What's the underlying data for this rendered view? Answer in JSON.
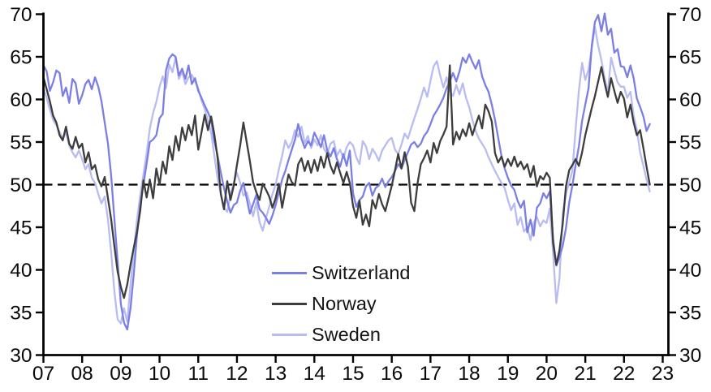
{
  "chart_data": {
    "type": "line",
    "title": "",
    "description": "Manufacturing PMI lines for Switzerland, Norway and Sweden, monthly 2007 to late 2022",
    "xlabel": "",
    "ylabel": "",
    "ylim": [
      30,
      70
    ],
    "y_ticks": [
      30,
      35,
      40,
      45,
      50,
      55,
      60,
      65,
      70
    ],
    "y_axis_sides": "both",
    "x_tick_labels": [
      "07",
      "08",
      "09",
      "10",
      "11",
      "12",
      "13",
      "14",
      "15",
      "16",
      "17",
      "18",
      "19",
      "20",
      "21",
      "22",
      "23"
    ],
    "x_tick_years": [
      2007,
      2008,
      2009,
      2010,
      2011,
      2012,
      2013,
      2014,
      2015,
      2016,
      2017,
      2018,
      2019,
      2020,
      2021,
      2022,
      2023
    ],
    "grid": false,
    "reference_line": {
      "value": 50,
      "style": "dashed",
      "color": "#000000"
    },
    "legend": {
      "position": "center-bottom",
      "order": [
        "Switzerland",
        "Norway",
        "Sweden"
      ]
    },
    "x_start_year": 2007.0,
    "x_step_years": 0.0833333,
    "series": [
      {
        "name": "Switzerland",
        "color": "#7b7fe4",
        "values": [
          64.0,
          63.3,
          61.0,
          62.0,
          63.4,
          63.1,
          60.4,
          61.4,
          59.6,
          62.4,
          61.9,
          59.5,
          60.5,
          61.8,
          62.3,
          61.2,
          62.6,
          61.5,
          59.8,
          57.3,
          54.8,
          51.0,
          46.0,
          41.0,
          36.0,
          33.8,
          33.0,
          35.5,
          39.5,
          44.0,
          47.5,
          50.0,
          52.5,
          55.0,
          55.3,
          55.8,
          57.8,
          58.3,
          63.4,
          64.8,
          65.3,
          65.0,
          62.8,
          63.6,
          62.4,
          64.0,
          61.8,
          62.5,
          61.0,
          60.2,
          59.3,
          58.5,
          57.6,
          55.1,
          53.4,
          51.4,
          49.6,
          48.0,
          46.7,
          47.6,
          47.9,
          49.3,
          50.2,
          48.4,
          46.6,
          47.7,
          48.8,
          47.1,
          46.7,
          46.1,
          45.4,
          46.4,
          47.6,
          49.1,
          50.6,
          51.6,
          52.9,
          54.1,
          55.3,
          57.1,
          55.4,
          54.3,
          55.1,
          54.6,
          56.1,
          55.3,
          54.4,
          55.8,
          54.0,
          53.3,
          54.3,
          53.0,
          52.1,
          53.6,
          52.2,
          54.0,
          49.0,
          47.4,
          48.2,
          48.6,
          49.8,
          50.2,
          48.7,
          49.6,
          49.9,
          50.7,
          49.7,
          50.4,
          50.9,
          51.6,
          52.4,
          51.9,
          52.9,
          53.8,
          54.7,
          55.0,
          54.4,
          54.8,
          55.7,
          56.2,
          57.1,
          58.1,
          58.7,
          59.4,
          60.2,
          61.3,
          62.1,
          63.1,
          62.1,
          63.3,
          64.9,
          64.3,
          65.3,
          64.4,
          63.6,
          64.6,
          62.7,
          61.7,
          60.9,
          59.4,
          57.6,
          55.5,
          53.4,
          51.9,
          50.8,
          49.9,
          49.4,
          48.1,
          47.3,
          48.1,
          44.4,
          45.9,
          44.0,
          47.3,
          47.8,
          49.0,
          48.4,
          49.2,
          43.7,
          40.5,
          41.5,
          42.8,
          44.9,
          47.9,
          49.9,
          52.3,
          54.5,
          57.5,
          59.4,
          61.3,
          66.3,
          69.1,
          69.9,
          68.0,
          70.1,
          67.6,
          68.3,
          65.5,
          65.9,
          63.9,
          63.8,
          62.6,
          64.0,
          62.5,
          60.1,
          59.1,
          58.0,
          56.3,
          57.1
        ]
      },
      {
        "name": "Norway",
        "color": "#3d3d3d",
        "values": [
          62.6,
          61.2,
          59.8,
          58.1,
          57.3,
          55.8,
          55.2,
          56.8,
          54.8,
          54.2,
          55.6,
          54.3,
          54.8,
          52.6,
          53.8,
          51.8,
          52.3,
          50.6,
          49.8,
          50.9,
          48.4,
          45.9,
          42.8,
          39.8,
          38.0,
          36.7,
          38.3,
          40.6,
          42.6,
          44.4,
          46.9,
          50.5,
          48.5,
          50.6,
          48.4,
          51.9,
          50.0,
          52.7,
          51.3,
          54.5,
          52.9,
          55.7,
          54.0,
          56.7,
          55.2,
          57.0,
          55.8,
          58.1,
          54.1,
          56.1,
          58.2,
          56.4,
          58.0,
          55.9,
          53.1,
          48.9,
          47.1,
          50.4,
          48.2,
          49.9,
          52.3,
          54.6,
          57.3,
          55.0,
          52.8,
          50.3,
          49.1,
          48.2,
          50.1,
          49.4,
          48.6,
          47.3,
          48.4,
          50.1,
          47.3,
          49.3,
          51.2,
          50.3,
          49.9,
          52.4,
          53.1,
          51.6,
          52.8,
          51.4,
          52.9,
          51.6,
          53.3,
          52.0,
          53.7,
          52.2,
          51.3,
          52.6,
          51.4,
          50.2,
          51.5,
          50.2,
          47.5,
          46.1,
          48.1,
          45.3,
          46.5,
          45.1,
          48.2,
          47.2,
          48.9,
          47.7,
          46.9,
          48.4,
          49.9,
          51.7,
          53.6,
          51.9,
          53.8,
          52.1,
          47.9,
          46.9,
          50.2,
          52.4,
          53.1,
          54.0,
          52.6,
          54.9,
          53.7,
          55.1,
          55.9,
          56.8,
          64.0,
          54.7,
          56.2,
          55.3,
          56.5,
          55.7,
          57.2,
          55.8,
          57.0,
          58.1,
          56.6,
          59.4,
          58.6,
          57.4,
          53.7,
          52.6,
          53.3,
          52.1,
          53.0,
          52.2,
          53.3,
          52.1,
          52.7,
          51.8,
          52.4,
          50.9,
          52.2,
          49.8,
          51.0,
          50.6,
          51.4,
          50.8,
          43.2,
          40.6,
          42.3,
          45.4,
          49.8,
          51.7,
          52.3,
          53.0,
          52.2,
          53.8,
          55.8,
          57.4,
          59.0,
          60.4,
          62.1,
          63.8,
          61.9,
          60.3,
          62.5,
          61.0,
          59.6,
          60.9,
          60.1,
          57.9,
          59.4,
          57.3,
          55.8,
          56.4,
          54.3,
          52.1,
          50.0
        ]
      },
      {
        "name": "Sweden",
        "color": "#b9bcf1",
        "values": [
          61.3,
          60.2,
          58.8,
          57.6,
          57.0,
          56.2,
          55.4,
          56.1,
          54.6,
          53.8,
          53.2,
          54.0,
          53.0,
          51.8,
          52.4,
          50.8,
          50.2,
          48.9,
          47.8,
          48.6,
          45.9,
          42.0,
          37.5,
          34.2,
          33.7,
          35.5,
          33.9,
          38.3,
          42.1,
          45.8,
          48.7,
          51.2,
          53.7,
          56.6,
          58.4,
          59.7,
          61.5,
          62.7,
          61.3,
          64.1,
          63.2,
          64.9,
          62.4,
          63.3,
          61.8,
          62.6,
          62.9,
          62.1,
          61.3,
          59.9,
          58.9,
          57.5,
          56.1,
          53.4,
          50.7,
          48.9,
          47.3,
          46.8,
          48.9,
          50.2,
          51.4,
          50.2,
          48.7,
          49.1,
          47.8,
          46.3,
          47.9,
          45.6,
          44.6,
          46.1,
          47.4,
          48.9,
          50.0,
          51.8,
          53.4,
          55.2,
          54.3,
          55.0,
          56.4,
          55.6,
          56.8,
          54.9,
          55.7,
          54.3,
          55.3,
          54.6,
          55.8,
          54.2,
          53.6,
          54.8,
          55.1,
          53.4,
          54.1,
          53.1,
          54.4,
          55.0,
          54.6,
          53.2,
          52.4,
          55.1,
          54.5,
          53.0,
          54.2,
          53.6,
          52.8,
          54.0,
          54.6,
          55.2,
          55.5,
          54.1,
          53.6,
          54.7,
          56.0,
          55.4,
          56.6,
          57.8,
          58.9,
          60.1,
          61.4,
          60.3,
          62.2,
          63.9,
          64.5,
          62.8,
          61.4,
          62.6,
          61.0,
          60.4,
          61.7,
          60.6,
          61.9,
          60.2,
          59.1,
          57.6,
          56.3,
          55.4,
          54.8,
          54.2,
          53.2,
          52.4,
          51.6,
          50.9,
          50.2,
          49.6,
          48.2,
          47.0,
          47.8,
          45.3,
          46.2,
          44.5,
          45.0,
          43.5,
          45.5,
          46.2,
          45.1,
          45.8,
          45.5,
          47.2,
          42.0,
          36.1,
          39.0,
          46.6,
          48.9,
          50.3,
          51.6,
          56.5,
          61.0,
          64.3,
          62.3,
          63.5,
          66.0,
          68.5,
          66.3,
          64.6,
          62.5,
          60.8,
          64.9,
          63.4,
          62.0,
          61.5,
          61.5,
          60.2,
          60.9,
          58.1,
          56.4,
          53.8,
          52.2,
          50.6,
          49.2
        ]
      }
    ]
  }
}
